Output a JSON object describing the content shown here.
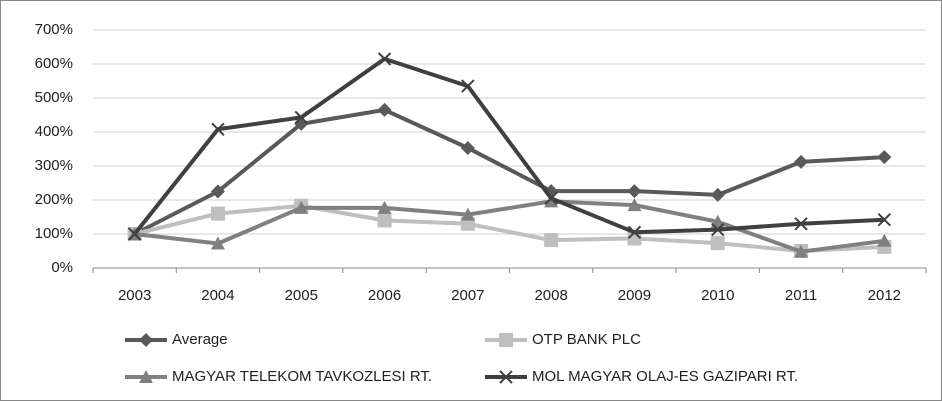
{
  "chart_data": {
    "type": "line",
    "categories": [
      "2003",
      "2004",
      "2005",
      "2006",
      "2007",
      "2008",
      "2009",
      "2010",
      "2011",
      "2012"
    ],
    "series": [
      {
        "name": "Average",
        "color": "#595959",
        "marker": "diamond",
        "values": [
          100,
          225,
          424,
          465,
          353,
          226,
          226,
          215,
          312,
          326
        ]
      },
      {
        "name": "OTP BANK PLC",
        "color": "#bfbfbf",
        "marker": "square",
        "values": [
          100,
          160,
          183,
          140,
          130,
          82,
          87,
          73,
          50,
          62
        ]
      },
      {
        "name": "MAGYAR TELEKOM TAVKOZLESI RT.",
        "color": "#808080",
        "marker": "triangle",
        "values": [
          100,
          72,
          177,
          177,
          157,
          196,
          185,
          136,
          48,
          80
        ]
      },
      {
        "name": "MOL MAGYAR OLAJ-ES GAZIPARI RT.",
        "color": "#404040",
        "marker": "x",
        "values": [
          100,
          408,
          443,
          615,
          535,
          205,
          105,
          113,
          130,
          142
        ]
      }
    ],
    "ylim": [
      0,
      700
    ],
    "yticks": [
      {
        "value": 0,
        "label": "0%"
      },
      {
        "value": 100,
        "label": "100%"
      },
      {
        "value": 200,
        "label": "200%"
      },
      {
        "value": 300,
        "label": "300%"
      },
      {
        "value": 400,
        "label": "400%"
      },
      {
        "value": 500,
        "label": "500%"
      },
      {
        "value": 600,
        "label": "600%"
      },
      {
        "value": 700,
        "label": "700%"
      }
    ],
    "grid": true
  }
}
